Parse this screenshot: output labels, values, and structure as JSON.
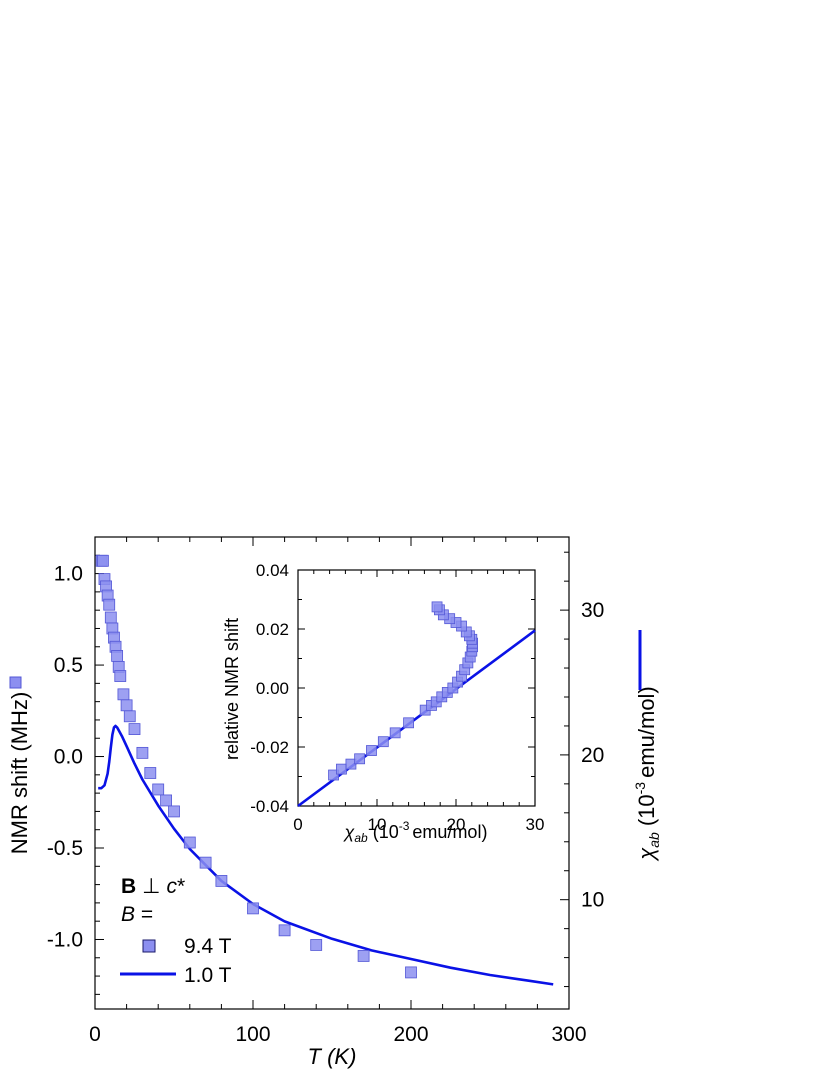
{
  "colors": {
    "marker_fill": "#8c8ff0",
    "marker_stroke": "#5357d6",
    "line": "#0a12e6",
    "axis": "#000000"
  },
  "icons": {
    "marker_legend": "filled-square-marker",
    "line_legend": "solid-blue-line"
  },
  "chart_data": [
    {
      "type": "scatter",
      "xlabel": "T (K)",
      "xlim": [
        0,
        300
      ],
      "x_ticks": [
        "0",
        "100",
        "200",
        "300"
      ],
      "ylabel": "NMR shift (MHz)",
      "ylim": [
        -1.38,
        1.2
      ],
      "y_ticks": [
        "1.0",
        "0.5",
        "0.0",
        "-0.5",
        "-1.0"
      ],
      "y2label_symbol": "χab",
      "y2label": "(10-3 emu/mol)",
      "y2lim": [
        2.45,
        35.05
      ],
      "y2_ticks": [
        "30",
        "20",
        "10"
      ],
      "annotation_field": "B ⊥ c*",
      "annotation_B": "B =",
      "series": [
        {
          "name": "9.4 T",
          "kind": "markers",
          "axis": "left",
          "x": [
            4.2,
            5,
            6,
            7,
            8,
            9,
            10,
            11,
            12,
            13,
            14,
            15,
            16,
            18,
            20,
            22,
            25,
            30,
            35,
            40,
            45,
            50,
            60,
            70,
            80,
            100,
            120,
            140,
            170,
            200
          ],
          "y": [
            1.07,
            1.07,
            0.97,
            0.93,
            0.88,
            0.83,
            0.76,
            0.7,
            0.65,
            0.6,
            0.55,
            0.49,
            0.44,
            0.34,
            0.28,
            0.22,
            0.15,
            0.02,
            -0.09,
            -0.18,
            -0.24,
            -0.3,
            -0.47,
            -0.58,
            -0.68,
            -0.83,
            -0.95,
            -1.03,
            -1.09,
            -1.18
          ]
        },
        {
          "name": "1.0 T",
          "kind": "line",
          "axis": "right",
          "x": [
            2,
            4,
            6,
            8,
            9,
            10,
            11,
            12,
            13,
            14,
            15,
            17,
            20,
            25,
            30,
            40,
            50,
            60,
            80,
            100,
            120,
            150,
            175,
            200,
            225,
            250,
            275,
            290
          ],
          "y": [
            17.7,
            17.7,
            17.9,
            18.7,
            19.5,
            20.5,
            21.4,
            21.9,
            22.0,
            21.9,
            21.7,
            21.3,
            20.6,
            19.4,
            18.3,
            16.5,
            14.9,
            13.5,
            11.3,
            9.7,
            8.5,
            7.3,
            6.5,
            5.9,
            5.3,
            4.8,
            4.4,
            4.15
          ]
        }
      ]
    },
    {
      "type": "scatter",
      "inset": true,
      "xlabel_symbol": "χab",
      "xlabel": "(10-3 emu/mol)",
      "xlim": [
        0,
        30
      ],
      "x_ticks": [
        "0",
        "10",
        "20",
        "30"
      ],
      "ylabel": "relative NMR shift",
      "ylim": [
        -0.04,
        0.04
      ],
      "y_ticks": [
        "0.04",
        "0.02",
        "0.00",
        "-0.02",
        "-0.04"
      ],
      "series": [
        {
          "kind": "markers",
          "x": [
            4.5,
            5.5,
            6.7,
            7.8,
            9.3,
            10.8,
            12.3,
            14.0,
            16.1,
            16.9,
            17.5,
            18.2,
            18.9,
            19.6,
            20.2,
            20.7,
            21.1,
            21.5,
            21.8,
            22.0,
            22.1,
            22.1,
            22.0,
            21.7,
            21.3,
            20.7,
            20.0,
            19.2,
            18.4,
            17.9,
            17.6
          ],
          "y": [
            -0.0295,
            -0.0275,
            -0.0258,
            -0.024,
            -0.0212,
            -0.0182,
            -0.0152,
            -0.0118,
            -0.0075,
            -0.0059,
            -0.0047,
            -0.003,
            -0.0015,
            0.0,
            0.002,
            0.004,
            0.0062,
            0.0085,
            0.0105,
            0.0125,
            0.014,
            0.0152,
            0.0165,
            0.0177,
            0.019,
            0.021,
            0.0222,
            0.0235,
            0.0248,
            0.0265,
            0.0275
          ]
        },
        {
          "kind": "line",
          "x": [
            0,
            30
          ],
          "y": [
            -0.04,
            0.0195
          ]
        }
      ]
    }
  ]
}
